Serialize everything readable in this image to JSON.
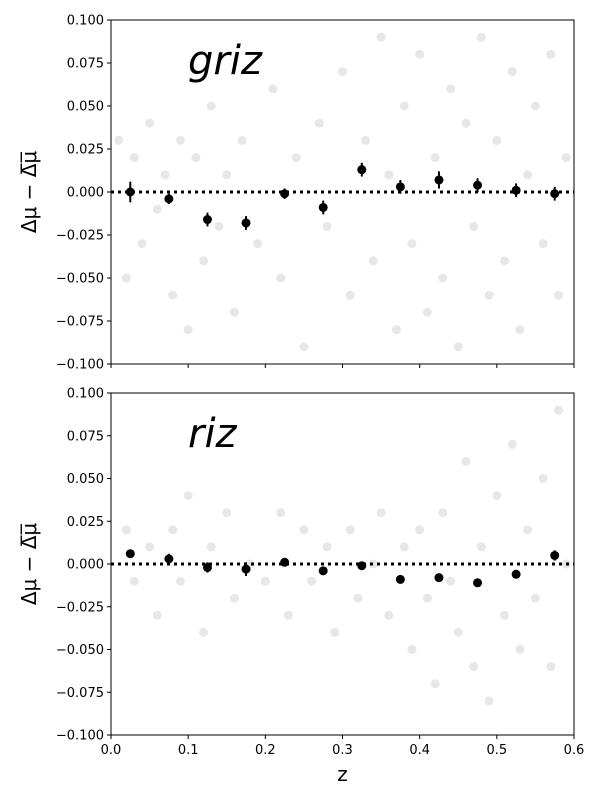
{
  "chart_data": [
    {
      "type": "scatter",
      "annotation": "griz",
      "ylabel": "Δμ − Δ̅μ̅",
      "xlim": [
        0,
        0.6
      ],
      "ylim": [
        -0.1,
        0.1
      ],
      "xticks": [
        {
          "value": 0,
          "label": "0.0"
        },
        0.1,
        0.2,
        0.3,
        0.4,
        0.5,
        0.6
      ],
      "yticks": [
        {
          "value": -0.1,
          "label": "−0.100"
        },
        {
          "value": -0.075,
          "label": "−0.075"
        },
        {
          "value": -0.05,
          "label": "−0.050"
        },
        {
          "value": -0.025,
          "label": "−0.025"
        },
        {
          "value": 0,
          "label": "0.000"
        },
        {
          "value": 0.025,
          "label": "0.025"
        },
        {
          "value": 0.05,
          "label": "0.050"
        },
        {
          "value": 0.075,
          "label": "0.075"
        },
        {
          "value": 0.1,
          "label": "0.100"
        }
      ],
      "hline": 0,
      "series": [
        {
          "color": "#b0b0b0",
          "alpha": 0.3,
          "x": [
            0.01,
            0.02,
            0.03,
            0.04,
            0.05,
            0.06,
            0.07,
            0.08,
            0.09,
            0.1,
            0.11,
            0.12,
            0.13,
            0.14,
            0.15,
            0.16,
            0.17,
            0.19,
            0.21,
            0.22,
            0.24,
            0.25,
            0.27,
            0.28,
            0.3,
            0.31,
            0.33,
            0.34,
            0.35,
            0.36,
            0.37,
            0.38,
            0.39,
            0.4,
            0.41,
            0.42,
            0.43,
            0.44,
            0.45,
            0.46,
            0.47,
            0.48,
            0.49,
            0.5,
            0.51,
            0.52,
            0.53,
            0.54,
            0.55,
            0.56,
            0.57,
            0.58,
            0.59
          ],
          "values": [
            0.03,
            -0.05,
            0.02,
            -0.03,
            0.04,
            -0.01,
            0.01,
            -0.06,
            0.03,
            -0.08,
            0.02,
            -0.04,
            0.05,
            -0.02,
            0.01,
            -0.07,
            0.03,
            -0.03,
            0.06,
            -0.05,
            0.02,
            -0.09,
            0.04,
            -0.02,
            0.07,
            -0.06,
            0.03,
            -0.04,
            0.09,
            0.01,
            -0.08,
            0.05,
            -0.03,
            0.08,
            -0.07,
            0.02,
            -0.05,
            0.06,
            -0.09,
            0.04,
            -0.02,
            0.09,
            -0.06,
            0.03,
            -0.04,
            0.07,
            -0.08,
            0.01,
            0.05,
            -0.03,
            0.08,
            -0.06,
            0.02
          ]
        },
        {
          "color": "#000000",
          "x": [
            0.025,
            0.075,
            0.125,
            0.175,
            0.225,
            0.275,
            0.325,
            0.375,
            0.425,
            0.475,
            0.525,
            0.575
          ],
          "values": [
            0.0,
            -0.004,
            -0.016,
            -0.018,
            -0.001,
            -0.009,
            0.013,
            0.003,
            0.007,
            0.004,
            0.001,
            -0.001
          ],
          "errors": [
            0.006,
            0.003,
            0.004,
            0.004,
            0.003,
            0.004,
            0.004,
            0.004,
            0.005,
            0.004,
            0.004,
            0.004
          ]
        }
      ]
    },
    {
      "type": "scatter",
      "annotation": "riz",
      "ylabel": "Δμ − Δ̅μ̅",
      "xlabel": "z",
      "xlim": [
        0,
        0.6
      ],
      "ylim": [
        -0.1,
        0.1
      ],
      "xticks": [
        {
          "value": 0,
          "label": "0.0"
        },
        0.1,
        0.2,
        0.3,
        0.4,
        0.5,
        0.6
      ],
      "yticks": [
        {
          "value": -0.1,
          "label": "−0.100"
        },
        {
          "value": -0.075,
          "label": "−0.075"
        },
        {
          "value": -0.05,
          "label": "−0.050"
        },
        {
          "value": -0.025,
          "label": "−0.025"
        },
        {
          "value": 0,
          "label": "0.000"
        },
        {
          "value": 0.025,
          "label": "0.025"
        },
        {
          "value": 0.05,
          "label": "0.050"
        },
        {
          "value": 0.075,
          "label": "0.075"
        },
        {
          "value": 0.1,
          "label": "0.100"
        }
      ],
      "hline": 0,
      "series": [
        {
          "color": "#b0b0b0",
          "alpha": 0.3,
          "x": [
            0.02,
            0.03,
            0.05,
            0.06,
            0.08,
            0.09,
            0.1,
            0.12,
            0.13,
            0.15,
            0.16,
            0.18,
            0.2,
            0.22,
            0.23,
            0.25,
            0.26,
            0.28,
            0.29,
            0.31,
            0.32,
            0.34,
            0.35,
            0.36,
            0.38,
            0.39,
            0.4,
            0.41,
            0.42,
            0.43,
            0.44,
            0.45,
            0.46,
            0.47,
            0.48,
            0.49,
            0.5,
            0.51,
            0.52,
            0.53,
            0.54,
            0.55,
            0.56,
            0.57,
            0.58,
            0.59
          ],
          "values": [
            0.02,
            -0.01,
            0.01,
            -0.03,
            0.02,
            -0.01,
            0.04,
            -0.04,
            0.01,
            0.03,
            -0.02,
            0.0,
            -0.01,
            0.03,
            -0.03,
            0.02,
            -0.01,
            0.01,
            -0.04,
            0.02,
            -0.02,
            0.0,
            0.03,
            -0.03,
            0.01,
            -0.05,
            0.02,
            -0.02,
            -0.07,
            0.03,
            -0.01,
            -0.04,
            0.06,
            -0.06,
            0.01,
            -0.08,
            0.04,
            -0.03,
            0.07,
            -0.05,
            0.02,
            -0.02,
            0.05,
            -0.06,
            0.09,
            0.0
          ]
        },
        {
          "color": "#000000",
          "x": [
            0.025,
            0.075,
            0.125,
            0.175,
            0.225,
            0.275,
            0.325,
            0.375,
            0.425,
            0.475,
            0.525,
            0.575
          ],
          "values": [
            0.006,
            0.003,
            -0.002,
            -0.003,
            0.001,
            -0.004,
            -0.001,
            -0.009,
            -0.008,
            -0.011,
            -0.006,
            0.005
          ],
          "errors": [
            0.002,
            0.003,
            0.003,
            0.004,
            0.002,
            0.002,
            0.002,
            0.002,
            0.002,
            0.002,
            0.002,
            0.003
          ]
        }
      ]
    }
  ]
}
